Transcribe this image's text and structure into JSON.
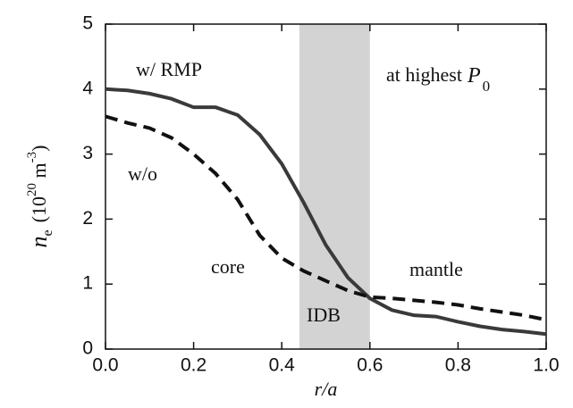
{
  "chart_data": {
    "type": "line",
    "title_parts": [
      "at highest",
      "P",
      "0"
    ],
    "xlabel": "r/a",
    "ylabel_parts": [
      "n",
      "e",
      "(10",
      "20",
      " m",
      "-3",
      ")"
    ],
    "annotations": [
      "core",
      "mantle",
      "IDB"
    ],
    "shade": [
      0.44,
      0.6
    ],
    "shade_color": "#d3d3d3",
    "x": [
      0.0,
      0.05,
      0.1,
      0.15,
      0.2,
      0.25,
      0.3,
      0.35,
      0.4,
      0.45,
      0.5,
      0.55,
      0.6,
      0.65,
      0.7,
      0.75,
      0.8,
      0.85,
      0.9,
      0.95,
      1.0
    ],
    "series": [
      {
        "name": "w/ RMP",
        "color": "#3a3a3a",
        "dash": false,
        "values": [
          4.0,
          3.98,
          3.93,
          3.85,
          3.72,
          3.72,
          3.6,
          3.3,
          2.85,
          2.25,
          1.6,
          1.1,
          0.78,
          0.6,
          0.52,
          0.5,
          0.42,
          0.35,
          0.3,
          0.27,
          0.23
        ]
      },
      {
        "name": "w/o",
        "color": "#111111",
        "dash": true,
        "values": [
          3.58,
          3.48,
          3.4,
          3.25,
          3.0,
          2.7,
          2.3,
          1.75,
          1.4,
          1.2,
          1.05,
          0.9,
          0.8,
          0.78,
          0.75,
          0.72,
          0.68,
          0.62,
          0.57,
          0.52,
          0.45
        ]
      }
    ],
    "xlim": [
      0,
      1
    ],
    "ylim": [
      0,
      5
    ],
    "xticks": [
      {
        "value": 0,
        "label": "0.0"
      },
      {
        "value": 0.2,
        "label": "0.2"
      },
      {
        "value": 0.4,
        "label": "0.4"
      },
      {
        "value": 0.6,
        "label": "0.6"
      },
      {
        "value": 0.8,
        "label": "0.8"
      },
      {
        "value": 1,
        "label": "1.0"
      }
    ],
    "yticks": [
      0,
      1,
      2,
      3,
      4,
      5
    ]
  }
}
